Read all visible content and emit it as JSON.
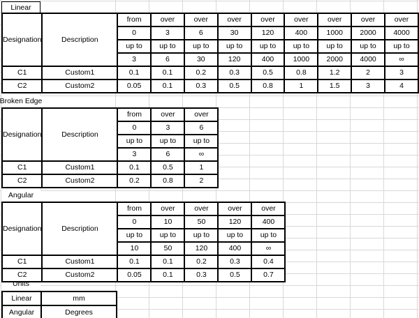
{
  "sheet": {
    "sections": {
      "linear": {
        "label": "Linear",
        "corner": {
          "designation": "Designation",
          "description": "Description"
        },
        "header_rows": [
          [
            "from",
            "over",
            "over",
            "over",
            "over",
            "over",
            "over",
            "over",
            "over"
          ],
          [
            "0",
            "3",
            "6",
            "30",
            "120",
            "400",
            "1000",
            "2000",
            "4000"
          ],
          [
            "up to",
            "up to",
            "up to",
            "up to",
            "up to",
            "up to",
            "up to",
            "up to",
            "up to"
          ],
          [
            "3",
            "6",
            "30",
            "120",
            "400",
            "1000",
            "2000",
            "4000",
            "∞"
          ]
        ],
        "data_rows": [
          {
            "designation": "C1",
            "description": "Custom1",
            "values": [
              "0.1",
              "0.1",
              "0.2",
              "0.3",
              "0.5",
              "0.8",
              "1.2",
              "2",
              "3"
            ]
          },
          {
            "designation": "C2",
            "description": "Custom2",
            "values": [
              "0.05",
              "0.1",
              "0.3",
              "0.5",
              "0.8",
              "1",
              "1.5",
              "3",
              "4"
            ]
          }
        ]
      },
      "broken_edge": {
        "label": "Broken Edge",
        "corner": {
          "designation": "Designation",
          "description": "Description"
        },
        "header_rows": [
          [
            "from",
            "over",
            "over"
          ],
          [
            "0",
            "3",
            "6"
          ],
          [
            "up to",
            "up to",
            "up to"
          ],
          [
            "3",
            "6",
            "∞"
          ]
        ],
        "data_rows": [
          {
            "designation": "C1",
            "description": "Custom1",
            "values": [
              "0.1",
              "0.5",
              "1"
            ]
          },
          {
            "designation": "C2",
            "description": "Custom2",
            "values": [
              "0.2",
              "0.8",
              "2"
            ]
          }
        ]
      },
      "angular": {
        "label": "Angular",
        "corner": {
          "designation": "Designation",
          "description": "Description"
        },
        "header_rows": [
          [
            "from",
            "over",
            "over",
            "over",
            "over"
          ],
          [
            "0",
            "10",
            "50",
            "120",
            "400"
          ],
          [
            "up to",
            "up to",
            "up to",
            "up to",
            "up to"
          ],
          [
            "10",
            "50",
            "120",
            "400",
            "∞"
          ]
        ],
        "data_rows": [
          {
            "designation": "C1",
            "description": "Custom1",
            "values": [
              "0.1",
              "0.1",
              "0.2",
              "0.3",
              "0.4"
            ]
          },
          {
            "designation": "C2",
            "description": "Custom2",
            "values": [
              "0.05",
              "0.1",
              "0.3",
              "0.5",
              "0.7"
            ]
          }
        ]
      },
      "units": {
        "label": "Units",
        "rows": [
          {
            "name": "Linear",
            "value": "mm"
          },
          {
            "name": "Angular",
            "value": "Degrees"
          }
        ]
      }
    }
  }
}
